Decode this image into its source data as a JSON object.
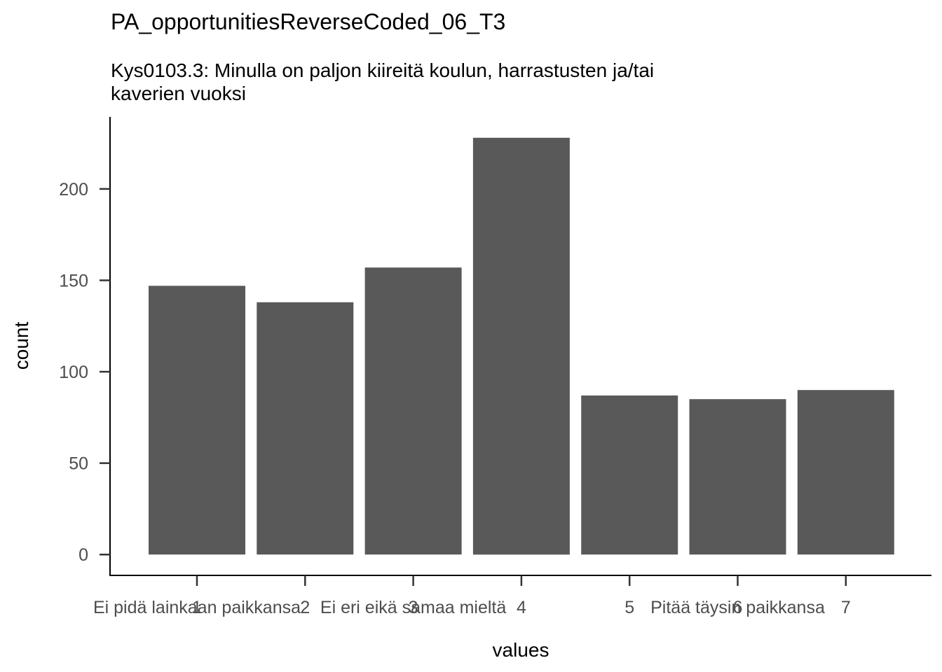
{
  "chart_data": {
    "type": "bar",
    "title": "PA_opportunitiesReverseCoded_06_T3",
    "subtitle_lines": [
      "Kys0103.3: Minulla on paljon kiireitä koulun, harrastusten ja/tai",
      "kaverien vuoksi"
    ],
    "xlabel": "values",
    "ylabel": "count",
    "categories": [
      "1",
      "2",
      "3",
      "4",
      "5",
      "6",
      "7"
    ],
    "values": [
      147,
      138,
      157,
      228,
      87,
      85,
      90
    ],
    "x_tick_labels": [
      [
        "Ei pidä lainkaan paikkansa",
        "1"
      ],
      [
        "2"
      ],
      [
        "3",
        "Ei eri eikä samaa mieltä"
      ],
      [
        "4"
      ],
      [
        "5"
      ],
      [
        "6",
        "Pitää täysin paikkansa"
      ],
      [
        "7"
      ]
    ],
    "y_ticks": [
      0,
      50,
      100,
      150,
      200
    ],
    "ylim": [
      -11.4,
      239.4
    ],
    "bar_color": "#595959",
    "grid": false,
    "legend": "none"
  }
}
